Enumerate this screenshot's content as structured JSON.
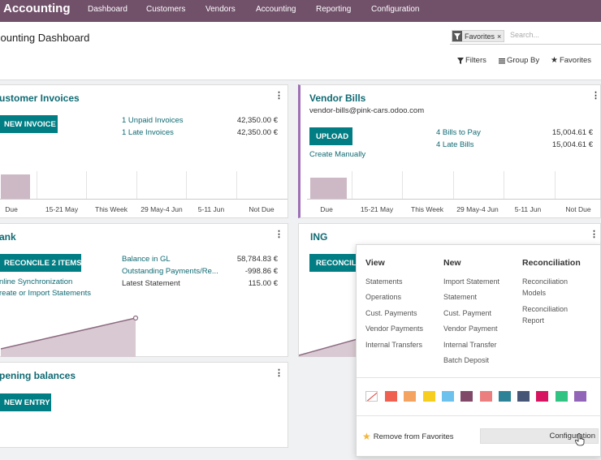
{
  "navbar": {
    "brand": "Accounting",
    "menu": [
      "Dashboard",
      "Customers",
      "Vendors",
      "Accounting",
      "Reporting",
      "Configuration"
    ]
  },
  "control_panel": {
    "title": "counting Dashboard",
    "search": {
      "facet_icon": "filter-icon",
      "facet_label": "Favorites",
      "facet_remove": "×",
      "placeholder": "Search..."
    },
    "filters_label": "Filters",
    "group_by_label": "Group By",
    "favorites_label": "Favorites"
  },
  "customer_invoices": {
    "title": "ustomer Invoices",
    "button": "NEW INVOICE",
    "rows": [
      {
        "label": "1 Unpaid Invoices",
        "amount": "42,350.00 €"
      },
      {
        "label": "1 Late Invoices",
        "amount": "42,350.00 €"
      }
    ],
    "chart_labels": [
      "Due",
      "15-21 May",
      "This Week",
      "29 May-4 Jun",
      "5-11 Jun",
      "Not Due"
    ]
  },
  "vendor_bills": {
    "title": "Vendor Bills",
    "email": "vendor-bills@pink-cars.odoo.com",
    "button": "UPLOAD",
    "create_manually": "Create Manually",
    "rows": [
      {
        "label": "4 Bills to Pay",
        "amount": "15,004.61 €"
      },
      {
        "label": "4 Late Bills",
        "amount": "15,004.61 €"
      }
    ],
    "chart_labels": [
      "Due",
      "15-21 May",
      "This Week",
      "29 May-4 Jun",
      "5-11 Jun",
      "Not Due"
    ]
  },
  "bank": {
    "title": "ank",
    "button": "RECONCILE 2 ITEMS",
    "links": [
      "nline Synchronization",
      "reate or Import Statements"
    ],
    "rows": [
      {
        "label": "Balance in GL",
        "amount": "58,784.83 €"
      },
      {
        "label": "Outstanding Payments/Re...",
        "amount": "-998.86 €"
      },
      {
        "label": "Latest Statement",
        "amount": "115.00 €"
      }
    ]
  },
  "ing_card": {
    "title": "ING",
    "button": "RECONCILE"
  },
  "opening_balances": {
    "title": "pening balances",
    "button": "NEW ENTRY"
  },
  "dropdown": {
    "columns": [
      {
        "heading": "View",
        "items": [
          "Statements",
          "Operations",
          "Cust. Payments",
          "Vendor Payments",
          "Internal Transfers"
        ]
      },
      {
        "heading": "New",
        "items": [
          "Import Statement",
          "Statement",
          "Cust. Payment",
          "Vendor Payment",
          "Internal Transfer",
          "Batch Deposit"
        ]
      },
      {
        "heading": "Reconciliation",
        "items": [
          "Reconciliation Models",
          "Reconciliation Report"
        ]
      }
    ],
    "colors": [
      "#f06050",
      "#f4a460",
      "#f7cd1f",
      "#6cc1ed",
      "#814968",
      "#eb7e7f",
      "#2c8397",
      "#475577",
      "#d6145f",
      "#30c381",
      "#9365b8"
    ],
    "remove_favorites": "Remove from Favorites",
    "configuration": "Configuration"
  }
}
